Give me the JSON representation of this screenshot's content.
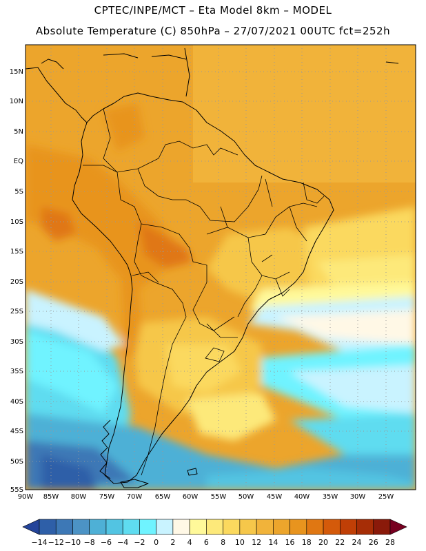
{
  "header": {
    "line1": "CPTEC/INPE/MCT –  Eta Model 8km – MODEL",
    "line2": "Absolute Temperature (C) 850hPa – 27/07/2021 00UTC fct=252h"
  },
  "map": {
    "lat_labels": [
      "15N",
      "10N",
      "5N",
      "EQ",
      "5S",
      "10S",
      "15S",
      "20S",
      "25S",
      "30S",
      "35S",
      "40S",
      "45S",
      "50S",
      "55S"
    ],
    "lon_labels": [
      "90W",
      "85W",
      "80W",
      "75W",
      "70W",
      "65W",
      "60W",
      "55W",
      "50W",
      "45W",
      "40W",
      "35W",
      "30W",
      "25W"
    ],
    "extent": {
      "lon_min": -90,
      "lon_max": -20,
      "lat_min": -55,
      "lat_max": 19
    },
    "gridlines": "dotted"
  },
  "colorbar": {
    "labels": [
      "-14",
      "-12",
      "-10",
      "-8",
      "-6",
      "-4",
      "-2",
      "0",
      "2",
      "4",
      "6",
      "8",
      "10",
      "12",
      "14",
      "16",
      "18",
      "20",
      "22",
      "24",
      "26",
      "28"
    ],
    "colors": [
      "#24449a",
      "#2e5fa8",
      "#3d78b6",
      "#4c93c5",
      "#4eb0d6",
      "#52c4e2",
      "#5fdcf0",
      "#6ff3ff",
      "#c9f3ff",
      "#fff8e6",
      "#fff99a",
      "#fde97a",
      "#fbd95e",
      "#f6c74a",
      "#f1b33a",
      "#eca52c",
      "#e8941e",
      "#e07712",
      "#d45a0a",
      "#c03f06",
      "#a62d06",
      "#8a1a0a",
      "#770020"
    ]
  }
}
